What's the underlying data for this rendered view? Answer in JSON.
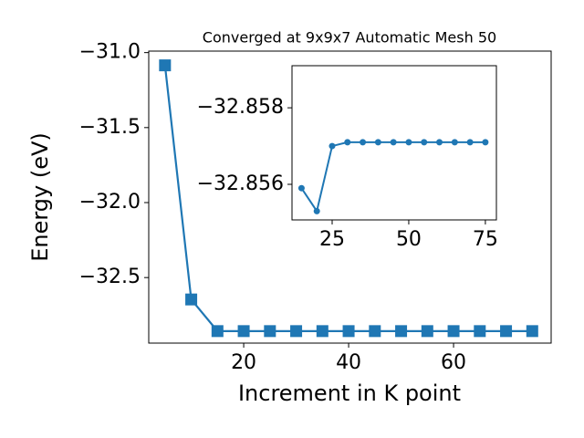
{
  "chart_data": [
    {
      "type": "line",
      "title": "Converged at 9x9x7 Automatic Mesh 50",
      "x_label": "Increment in K point",
      "y_label": "Energy (eV)",
      "x": [
        5,
        10,
        15,
        20,
        25,
        30,
        35,
        40,
        45,
        50,
        55,
        60,
        65,
        70,
        75
      ],
      "series": [
        {
          "color": "#1f77b4",
          "marker": "square",
          "values": [
            -31.085,
            -32.646,
            -32.857,
            -32.857,
            -32.857,
            -32.857,
            -32.857,
            -32.857,
            -32.857,
            -32.857,
            -32.857,
            -32.857,
            -32.857,
            -32.857,
            -32.857
          ]
        }
      ],
      "xlim": [
        1.9,
        78.6
      ],
      "ylim": [
        -32.937,
        -30.99
      ],
      "xticks": [
        20,
        40,
        60
      ],
      "yticks": [
        {
          "value": -32.5,
          "label": "−32.5"
        },
        {
          "value": -32.0,
          "label": "−32.0"
        },
        {
          "value": -31.5,
          "label": "−31.5"
        },
        {
          "value": -31.0,
          "label": "−31.0"
        }
      ]
    },
    {
      "type": "line",
      "x": [
        15,
        20,
        25,
        30,
        35,
        40,
        45,
        50,
        55,
        60,
        65,
        70,
        75
      ],
      "series": [
        {
          "color": "#1f77b4",
          "marker": "circle",
          "values": [
            -32.8559,
            -32.8553,
            -32.857,
            -32.8571,
            -32.8571,
            -32.8571,
            -32.8571,
            -32.8571,
            -32.8571,
            -32.8571,
            -32.8571,
            -32.8571,
            -32.8571
          ]
        }
      ],
      "xlim": [
        11.9,
        78.6
      ],
      "ylim": [
        -32.85507,
        -32.8591
      ],
      "xticks": [
        25,
        50,
        75
      ],
      "yticks": [
        {
          "value": -32.856,
          "label": "−32.856"
        },
        {
          "value": -32.858,
          "label": "−32.858"
        }
      ]
    }
  ]
}
